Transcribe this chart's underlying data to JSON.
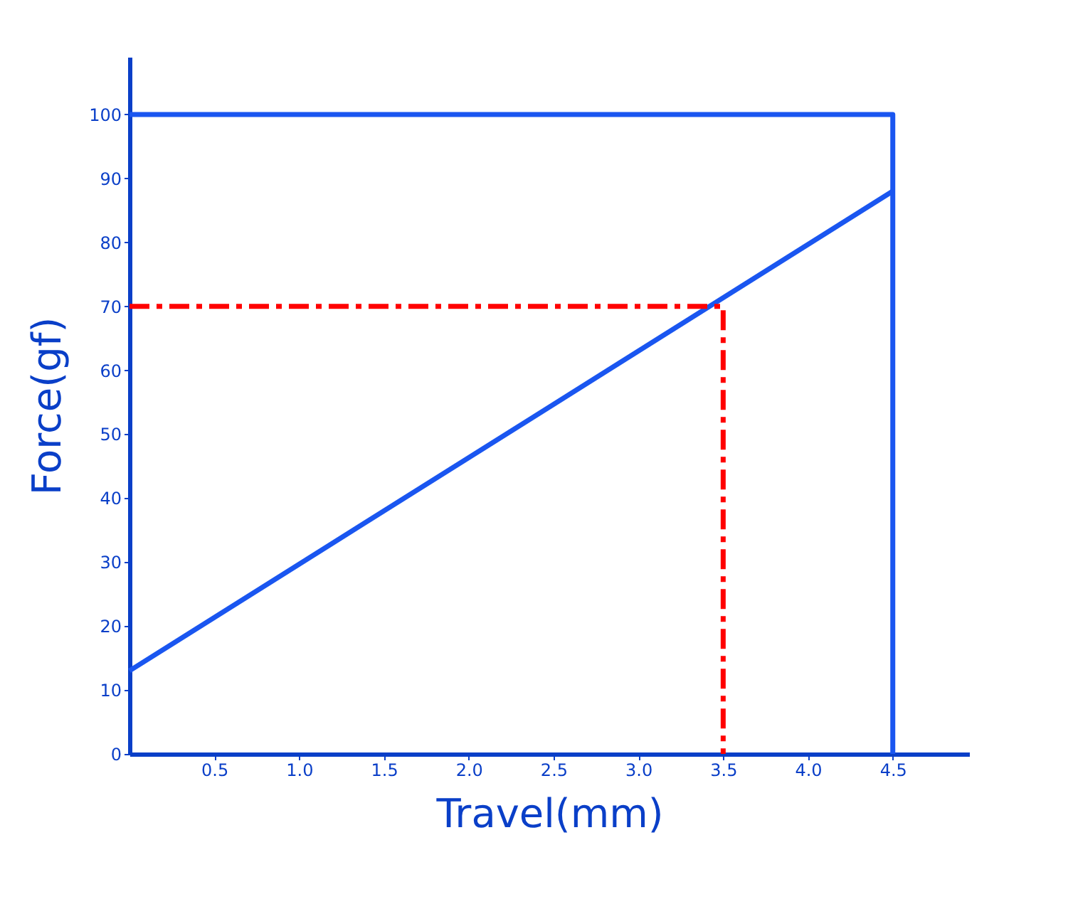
{
  "chart_data": {
    "type": "line",
    "xlabel": "Travel(mm)",
    "ylabel": "Force(gf)",
    "xlim": [
      0,
      4.95
    ],
    "ylim": [
      0,
      109
    ],
    "xticks": [
      0.5,
      {
        "value": 1,
        "label": "1.0"
      },
      1.5,
      {
        "value": 2,
        "label": "2.0"
      },
      2.5,
      {
        "value": 3,
        "label": "3.0"
      },
      3.5,
      {
        "value": 4,
        "label": "4.0"
      },
      4.5
    ],
    "yticks": [
      0,
      10,
      20,
      30,
      40,
      50,
      60,
      70,
      80,
      90,
      100
    ],
    "grid": false,
    "marker": "none",
    "series": [
      {
        "color": "#1a56f0",
        "x": [
          0,
          4.5
        ],
        "values": [
          13,
          88
        ],
        "line_style": "solid"
      },
      {
        "color": "#1a56f0",
        "x": [
          0,
          4.5,
          4.5
        ],
        "values": [
          100,
          100,
          0
        ],
        "line_style": "solid"
      },
      {
        "color": "#ff0000",
        "x": [
          0,
          3.5,
          3.5
        ],
        "values": [
          70,
          70,
          0
        ],
        "line_style": "dashed"
      }
    ]
  }
}
